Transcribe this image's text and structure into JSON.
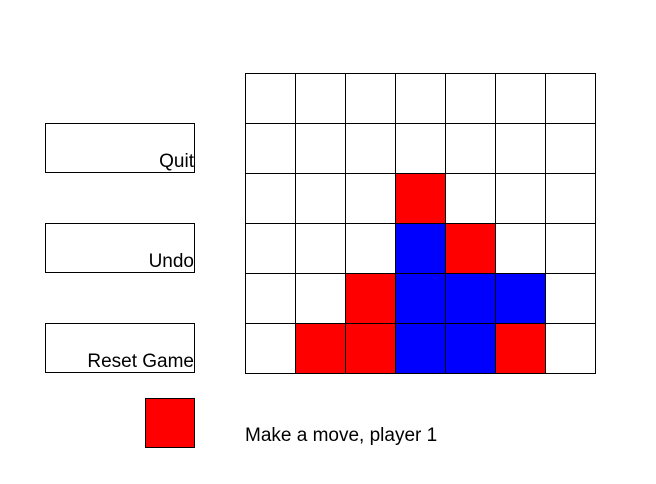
{
  "buttons": {
    "quit_label": "Quit",
    "undo_label": "Undo",
    "reset_label": "Reset Game"
  },
  "board": {
    "columns": 7,
    "rows": 6,
    "grid": [
      [
        "",
        "",
        "",
        "",
        "",
        "",
        ""
      ],
      [
        "",
        "",
        "",
        "",
        "",
        "",
        ""
      ],
      [
        "",
        "",
        "",
        "R",
        "",
        "",
        ""
      ],
      [
        "",
        "",
        "",
        "B",
        "R",
        "",
        ""
      ],
      [
        "",
        "",
        "R",
        "B",
        "B",
        "B",
        ""
      ],
      [
        "",
        "R",
        "R",
        "B",
        "B",
        "R",
        ""
      ]
    ]
  },
  "colors": {
    "player_1": "#ff0000",
    "player_2": "#0000ff",
    "empty": "#ffffff"
  },
  "status": {
    "current_player_color": "#ff0000",
    "message": "Make a move, player 1"
  }
}
